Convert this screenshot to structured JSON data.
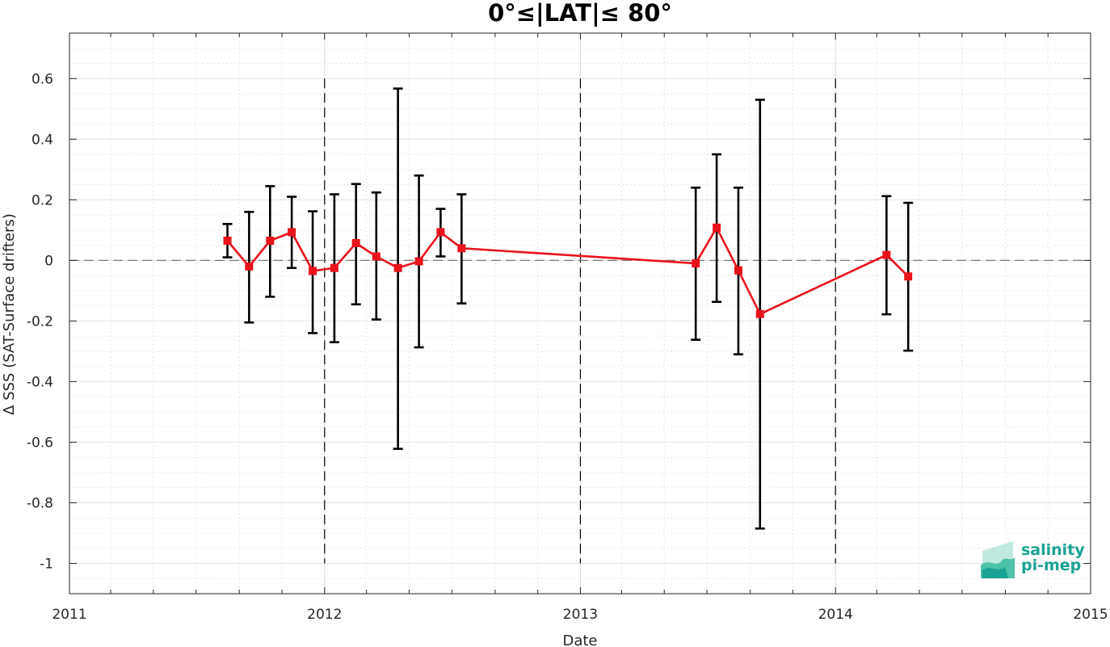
{
  "chart_data": {
    "type": "line",
    "title": "0°≤|LAT|≤ 80°",
    "xlabel": "Date",
    "ylabel": "Δ SSS (SAT-Surface drifters)",
    "xlim": [
      "2011-01-01",
      "2015-01-01"
    ],
    "ylim": [
      -1.1,
      0.75
    ],
    "x_ticks": [
      "2011",
      "2012",
      "2013",
      "2014",
      "2015"
    ],
    "y_ticks": [
      "-1",
      "-0.8",
      "-0.6",
      "-0.4",
      "-0.2",
      "0",
      "0.2",
      "0.4",
      "0.6"
    ],
    "grid": true,
    "zero_line": true,
    "year_boundary_lines": [
      "2012-01-01",
      "2013-01-01",
      "2014-01-01"
    ],
    "series": [
      {
        "color": "#e8131b",
        "marker": "square",
        "errorbar_color": "#000000",
        "points": [
          {
            "x": "2011-08-15",
            "y": 0.065,
            "lo": 0.01,
            "hi": 0.12
          },
          {
            "x": "2011-09-15",
            "y": -0.02,
            "lo": -0.205,
            "hi": 0.16
          },
          {
            "x": "2011-10-15",
            "y": 0.065,
            "lo": -0.12,
            "hi": 0.245
          },
          {
            "x": "2011-11-15",
            "y": 0.093,
            "lo": -0.025,
            "hi": 0.21
          },
          {
            "x": "2011-12-15",
            "y": -0.035,
            "lo": -0.24,
            "hi": 0.162
          },
          {
            "x": "2012-01-15",
            "y": -0.025,
            "lo": -0.27,
            "hi": 0.218
          },
          {
            "x": "2012-02-15",
            "y": 0.057,
            "lo": -0.145,
            "hi": 0.252
          },
          {
            "x": "2012-03-15",
            "y": 0.013,
            "lo": -0.195,
            "hi": 0.224
          },
          {
            "x": "2012-04-15",
            "y": -0.025,
            "lo": -0.622,
            "hi": 0.567
          },
          {
            "x": "2012-05-15",
            "y": -0.003,
            "lo": -0.287,
            "hi": 0.28
          },
          {
            "x": "2012-06-15",
            "y": 0.093,
            "lo": 0.013,
            "hi": 0.17
          },
          {
            "x": "2012-07-15",
            "y": 0.04,
            "lo": -0.142,
            "hi": 0.218
          },
          {
            "x": "2013-06-15",
            "y": -0.01,
            "lo": -0.262,
            "hi": 0.24
          },
          {
            "x": "2013-07-15",
            "y": 0.108,
            "lo": -0.137,
            "hi": 0.35
          },
          {
            "x": "2013-08-15",
            "y": -0.033,
            "lo": -0.31,
            "hi": 0.24
          },
          {
            "x": "2013-09-15",
            "y": -0.177,
            "lo": -0.885,
            "hi": 0.53
          },
          {
            "x": "2014-03-15",
            "y": 0.018,
            "lo": -0.178,
            "hi": 0.212
          },
          {
            "x": "2014-04-15",
            "y": -0.053,
            "lo": -0.298,
            "hi": 0.19
          }
        ]
      }
    ]
  },
  "logo": {
    "line1": "salinity",
    "line2": "pi-mep",
    "color": "#1aa394"
  }
}
